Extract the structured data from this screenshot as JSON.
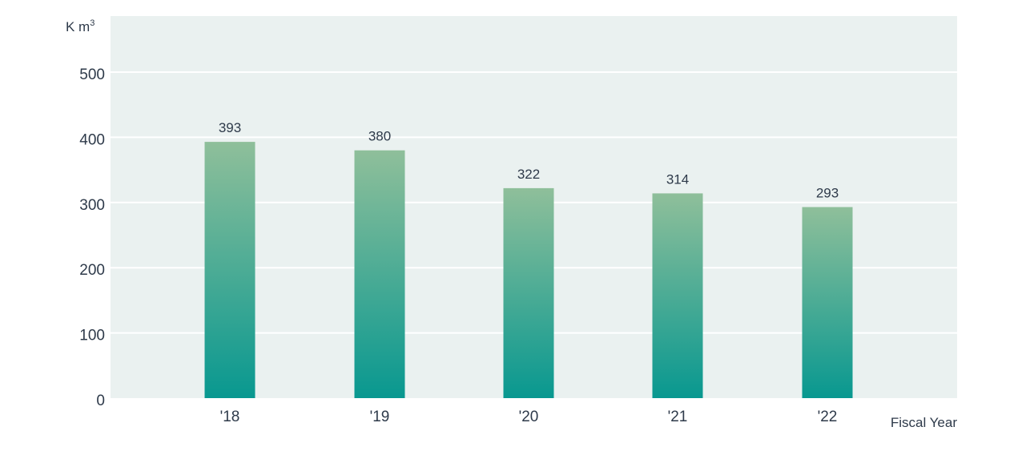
{
  "chart_data": {
    "type": "bar",
    "categories": [
      "'18",
      "'19",
      "'20",
      "'21",
      "'22"
    ],
    "values": [
      393,
      380,
      322,
      314,
      293
    ],
    "data_labels": [
      "393",
      "380",
      "322",
      "314",
      "293"
    ],
    "ylabel_prefix": "K m",
    "ylabel_superscript": "3",
    "xlabel": "Fiscal Year",
    "ylim": [
      0,
      500
    ],
    "yticks": [
      0,
      100,
      200,
      300,
      400,
      500
    ],
    "ytick_labels": [
      "0",
      "100",
      "200",
      "300",
      "400",
      "500"
    ],
    "grid": true,
    "colors": {
      "plot_background": "#eaf1f0",
      "gridline": "#ffffff",
      "bar_top": "#8fbf9a",
      "bar_bottom": "#089890",
      "text": "#2e3a4a"
    }
  }
}
